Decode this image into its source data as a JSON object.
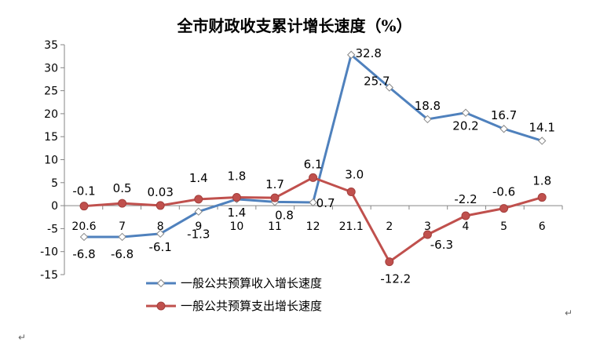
{
  "chart_data": {
    "type": "line",
    "title": "全市财政收支累计增长速度（%）",
    "categories": [
      "20.6",
      "7",
      "8",
      "9",
      "10",
      "11",
      "12",
      "21.1",
      "2",
      "3",
      "4",
      "5",
      "6"
    ],
    "ylim": [
      -15,
      35
    ],
    "yticks": [
      -15,
      -10,
      -5,
      0,
      5,
      10,
      15,
      20,
      25,
      30,
      35
    ],
    "ytick_labels": [
      "-15",
      "-10",
      "-5",
      "0",
      "5",
      "10",
      "15",
      "20",
      "25",
      "30",
      "35"
    ],
    "grid": false,
    "legend_position": "bottom",
    "series": [
      {
        "name": "一般公共预算收入增长速度",
        "color": "#4F81BD",
        "marker": "diamond",
        "values": [
          -6.8,
          -6.8,
          -6.1,
          -1.3,
          1.4,
          0.8,
          0.7,
          32.8,
          25.7,
          18.8,
          20.2,
          16.7,
          14.1
        ],
        "labels": [
          "-6.8",
          "-6.8",
          "-6.1",
          "-1.3",
          "1.4",
          "0.8",
          "0.7",
          "32.8",
          "25.7",
          "18.8",
          "20.2",
          "16.7",
          "14.1"
        ]
      },
      {
        "name": "一般公共预算支出增长速度",
        "color": "#C0504D",
        "marker": "circle",
        "values": [
          -0.1,
          0.5,
          0.03,
          1.4,
          1.8,
          1.7,
          6.1,
          3.0,
          -12.2,
          -6.3,
          -2.2,
          -0.6,
          1.8
        ],
        "labels": [
          "-0.1",
          "0.5",
          "0.03",
          "1.4",
          "1.8",
          "1.7",
          "6.1",
          "3.0",
          "-12.2",
          "-6.3",
          "-2.2",
          "-0.6",
          "1.8"
        ]
      }
    ]
  },
  "page_marks": {
    "return_glyph": "↵"
  }
}
